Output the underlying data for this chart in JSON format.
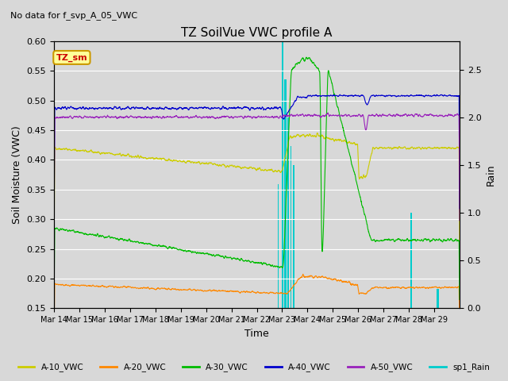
{
  "title": "TZ SoilVue VWC profile A",
  "no_data_text": "No data for f_svp_A_05_VWC",
  "ylabel_left": "Soil Moisture (VWC)",
  "ylabel_right": "Rain",
  "xlabel": "Time",
  "ylim_left": [
    0.15,
    0.6
  ],
  "ylim_right": [
    0.0,
    2.8
  ],
  "fig_bg_color": "#d8d8d8",
  "plot_bg_color": "#e8e8e8",
  "tz_sm_box_facecolor": "#ffff99",
  "tz_sm_box_edgecolor": "#cc9900",
  "tz_sm_text_color": "#cc0000",
  "colors": {
    "A10": "#cccc00",
    "A20": "#ff8800",
    "A30": "#00bb00",
    "A40": "#0000cc",
    "A50": "#9922bb",
    "Rain": "#00cccc"
  },
  "x_tick_labels": [
    "Mar 14",
    "Mar 15",
    "Mar 16",
    "Mar 17",
    "Mar 18",
    "Mar 19",
    "Mar 20",
    "Mar 21",
    "Mar 22",
    "Mar 23",
    "Mar 24",
    "Mar 25",
    "Mar 26",
    "Mar 27",
    "Mar 28",
    "Mar 29"
  ],
  "n_days": 16,
  "figsize": [
    6.4,
    4.8
  ],
  "dpi": 100
}
